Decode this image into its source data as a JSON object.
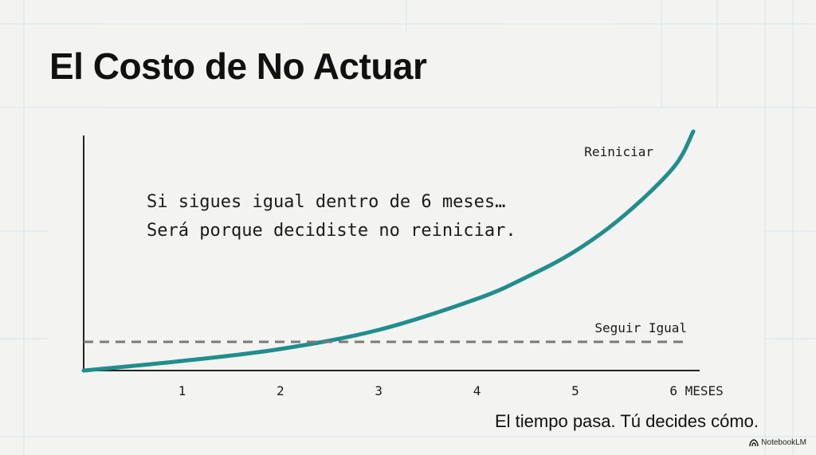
{
  "title": "El Costo de No Actuar",
  "note": {
    "line1": "Si sigues igual dentro de 6 meses…",
    "line2": "Será porque decidiste no reiniciar."
  },
  "caption": "El tiempo pasa. Tú decides cómo.",
  "brand": {
    "label": "NotebookLM",
    "icon": "notebooklm-logo-icon"
  },
  "colors": {
    "curve": "#1f8e8c",
    "baseline": "#7a7a7a",
    "axis": "#222222",
    "grid": "#cfe3ea",
    "background": "#f3f3f1"
  },
  "chart_data": {
    "type": "line",
    "x_ticks": [
      {
        "value": 1,
        "label": "1"
      },
      {
        "value": 2,
        "label": "2"
      },
      {
        "value": 3,
        "label": "3"
      },
      {
        "value": 4,
        "label": "4"
      },
      {
        "value": 5,
        "label": "5"
      },
      {
        "value": 6,
        "label": "6 MESES"
      }
    ],
    "xlim": [
      0,
      6.2
    ],
    "ylim": [
      0,
      1
    ],
    "grid": false,
    "series": [
      {
        "name": "Reiniciar",
        "style": "solid",
        "x": [
          0,
          1,
          2,
          3,
          4,
          4.5,
          5,
          5.5,
          6,
          6.2
        ],
        "y": [
          0,
          0.04,
          0.09,
          0.17,
          0.3,
          0.39,
          0.5,
          0.65,
          0.85,
          1.0
        ]
      },
      {
        "name": "Seguir Igual",
        "style": "dashed",
        "x": [
          0,
          6.2
        ],
        "y": [
          0.12,
          0.12
        ]
      }
    ]
  }
}
